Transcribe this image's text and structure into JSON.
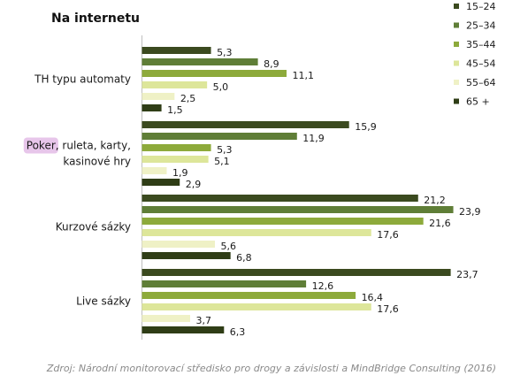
{
  "chart_data": {
    "type": "bar",
    "orientation": "horizontal",
    "title": "Na internetu",
    "categories": [
      [
        "TH typu automaty"
      ],
      [
        "Poker, ruleta, karty,",
        "kasinové hry"
      ],
      [
        "Kurzové sázky"
      ],
      [
        "Live sázky"
      ]
    ],
    "highlighted_text": "Poker",
    "series": [
      {
        "name": "15–24",
        "color": "#3b4a1f",
        "values": [
          5.3,
          15.9,
          21.2,
          23.7
        ],
        "labels": [
          "5,3",
          "15,9",
          "21,2",
          "23,7"
        ]
      },
      {
        "name": "25–34",
        "color": "#5f7e37",
        "values": [
          8.9,
          11.9,
          23.9,
          12.6
        ],
        "labels": [
          "8,9",
          "11,9",
          "23,9",
          "12,6"
        ]
      },
      {
        "name": "35–44",
        "color": "#8daa3b",
        "values": [
          11.1,
          5.3,
          21.6,
          16.4
        ],
        "labels": [
          "11,1",
          "5,3",
          "21,6",
          "16,4"
        ]
      },
      {
        "name": "45–54",
        "color": "#dde69a",
        "values": [
          5.0,
          5.1,
          17.6,
          17.6
        ],
        "labels": [
          "5,0",
          "5,1",
          "17,6",
          "17,6"
        ]
      },
      {
        "name": "55–64",
        "color": "#eff1c6",
        "values": [
          2.5,
          1.9,
          5.6,
          3.7
        ],
        "labels": [
          "2,5",
          "1,9",
          "5,6",
          "3,7"
        ]
      },
      {
        "name": "65 +",
        "color": "#2f3d16",
        "values": [
          1.5,
          2.9,
          6.8,
          6.3
        ],
        "labels": [
          "1,5",
          "2,9",
          "6,8",
          "6,3"
        ]
      }
    ],
    "legend_position": "top-right",
    "grid": false,
    "xlim": [
      0,
      25
    ],
    "source": "Zdroj: Národní monitorovací středisko pro drogy a závislosti a MindBridge Consulting (2016)"
  }
}
